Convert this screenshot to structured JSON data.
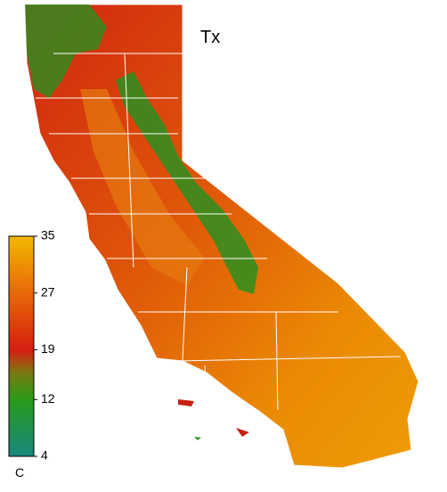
{
  "map": {
    "title": "Tx",
    "colorbar": {
      "ticks": [
        35,
        27,
        19,
        12,
        4
      ],
      "range": [
        4,
        35
      ],
      "unit": "C"
    }
  }
}
